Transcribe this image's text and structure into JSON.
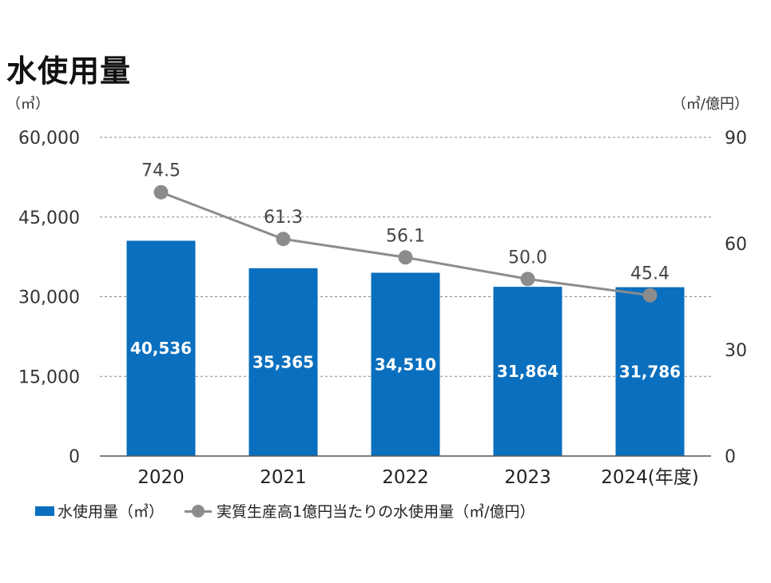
{
  "title": "水使用量",
  "unit_left": "（㎥）",
  "unit_right": "（㎥/億円）",
  "legend": {
    "bar_label": "水使用量（㎥）",
    "line_label": "実質生産高1億円当たりの水使用量（㎥/億円）"
  },
  "colors": {
    "bar": "#0a6fbe",
    "line": "#8c8c8c",
    "grid": "#888888"
  },
  "chart_data": {
    "type": "bar",
    "categories": [
      "2020",
      "2021",
      "2022",
      "2023",
      "2024(年度)"
    ],
    "series": [
      {
        "name": "水使用量（㎥）",
        "type": "bar",
        "axis": "left",
        "values": [
          40536,
          35365,
          34510,
          31864,
          31786
        ],
        "labels": [
          "40,536",
          "35,365",
          "34,510",
          "31,864",
          "31,786"
        ]
      },
      {
        "name": "実質生産高1億円当たりの水使用量（㎥/億円）",
        "type": "line",
        "axis": "right",
        "values": [
          74.5,
          61.3,
          56.1,
          50.0,
          45.4
        ],
        "labels": [
          "74.5",
          "61.3",
          "56.1",
          "50.0",
          "45.4"
        ]
      }
    ],
    "y_left": {
      "min": 0,
      "max": 60000,
      "ticks": [
        0,
        15000,
        30000,
        45000,
        60000
      ],
      "tick_labels": [
        "0",
        "15,000",
        "30,000",
        "45,000",
        "60,000"
      ]
    },
    "y_right": {
      "min": 0,
      "max": 90,
      "ticks": [
        0,
        30,
        60,
        90
      ],
      "tick_labels": [
        "0",
        "30",
        "60",
        "90"
      ]
    },
    "grid": true,
    "legend_position": "bottom-left"
  }
}
